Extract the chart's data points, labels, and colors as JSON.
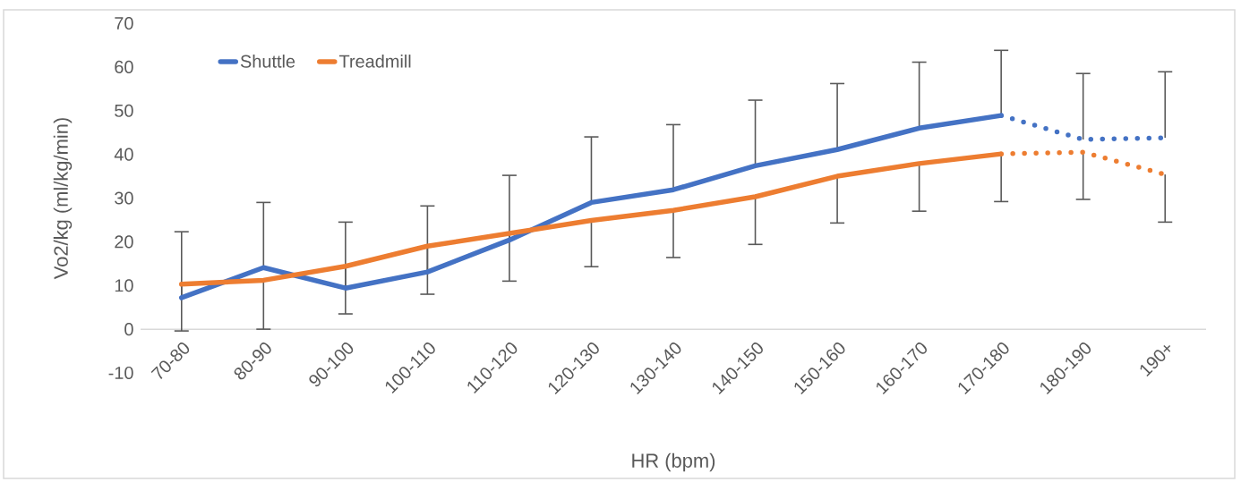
{
  "chart_data": {
    "type": "line",
    "xlabel": "HR (bpm)",
    "ylabel": "Vo2/kg (ml/kg/min)",
    "categories": [
      "70-80",
      "80-90",
      "90-100",
      "100-110",
      "110-120",
      "120-130",
      "130-140",
      "140-150",
      "150-160",
      "160-170",
      "170-180",
      "180-190",
      "190+"
    ],
    "ylim": [
      -10,
      70
    ],
    "yticks": [
      -10,
      0,
      10,
      20,
      30,
      40,
      50,
      60,
      70
    ],
    "legend": "top left",
    "series": [
      {
        "name": "Shuttle",
        "color": "#4472c4",
        "line_style": "solid",
        "values": [
          7.2,
          14.1,
          9.4,
          13.1,
          20.4,
          29.0,
          31.9,
          37.4,
          41.1,
          46.0,
          48.9,
          null,
          null
        ],
        "errors": [
          [
            7.2,
            22.3
          ],
          [
            14.1,
            29.0
          ],
          [
            9.4,
            24.5
          ],
          [
            13.1,
            28.2
          ],
          [
            20.4,
            35.2
          ],
          [
            29.0,
            44.0
          ],
          [
            31.9,
            46.8
          ],
          [
            37.4,
            52.4
          ],
          [
            41.1,
            56.2
          ],
          [
            46.0,
            61.1
          ],
          [
            48.9,
            63.8
          ],
          null,
          null
        ]
      },
      {
        "color": "#4472c4",
        "line_style": "dotted",
        "values": [
          null,
          null,
          null,
          null,
          null,
          null,
          null,
          null,
          null,
          null,
          48.9,
          43.4,
          43.8
        ],
        "errors": [
          null,
          null,
          null,
          null,
          null,
          null,
          null,
          null,
          null,
          null,
          null,
          [
            43.4,
            58.5
          ],
          [
            43.8,
            58.9
          ]
        ]
      },
      {
        "name": "Treadmill",
        "color": "#ed7d31",
        "line_style": "solid",
        "values": [
          10.3,
          11.2,
          14.4,
          19.0,
          21.9,
          24.9,
          27.2,
          30.3,
          35.0,
          37.9,
          40.1,
          null,
          null
        ],
        "errors": [
          [
            -0.4,
            10.3
          ],
          [
            0.0,
            11.2
          ],
          [
            3.5,
            14.4
          ],
          [
            8.0,
            19.0
          ],
          [
            11.0,
            21.9
          ],
          [
            14.3,
            24.9
          ],
          [
            16.4,
            27.2
          ],
          [
            19.4,
            30.3
          ],
          [
            24.3,
            35.0
          ],
          [
            27.0,
            37.9
          ],
          [
            29.2,
            40.1
          ],
          null,
          null
        ]
      },
      {
        "color": "#ed7d31",
        "line_style": "dotted",
        "values": [
          null,
          null,
          null,
          null,
          null,
          null,
          null,
          null,
          null,
          null,
          40.1,
          40.5,
          35.4
        ],
        "errors": [
          null,
          null,
          null,
          null,
          null,
          null,
          null,
          null,
          null,
          null,
          null,
          [
            29.7,
            40.5
          ],
          [
            24.5,
            35.4
          ]
        ]
      }
    ]
  }
}
